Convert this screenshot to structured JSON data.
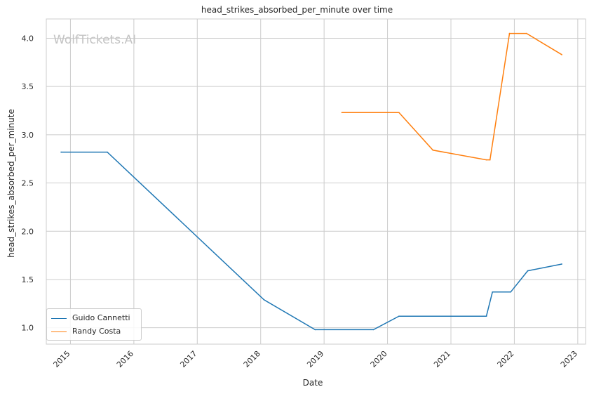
{
  "chart_data": {
    "type": "line",
    "title": "head_strikes_absorbed_per_minute over time",
    "xlabel": "Date",
    "ylabel": "head_strikes_absorbed_per_minute",
    "watermark": "WolfTickets.AI",
    "x_ticks": [
      "2015",
      "2016",
      "2017",
      "2018",
      "2019",
      "2020",
      "2021",
      "2022",
      "2023"
    ],
    "y_ticks": [
      "1.0",
      "1.5",
      "2.0",
      "2.5",
      "3.0",
      "3.5",
      "4.0"
    ],
    "xlim": [
      "2014-08-15",
      "2023-02-15"
    ],
    "ylim": [
      0.83,
      4.2
    ],
    "grid": true,
    "legend_position": "lower-left",
    "series": [
      {
        "name": "Guido Cannetti",
        "color": "#1f77b4",
        "points": [
          [
            "2014-11-08",
            2.82
          ],
          [
            "2015-08-01",
            2.82
          ],
          [
            "2018-01-20",
            1.29
          ],
          [
            "2018-11-10",
            0.98
          ],
          [
            "2019-10-12",
            0.98
          ],
          [
            "2020-03-07",
            1.12
          ],
          [
            "2021-07-24",
            1.12
          ],
          [
            "2021-08-28",
            1.37
          ],
          [
            "2021-12-11",
            1.37
          ],
          [
            "2022-03-19",
            1.59
          ],
          [
            "2022-10-01",
            1.66
          ]
        ]
      },
      {
        "name": "Randy Costa",
        "color": "#ff7f0e",
        "points": [
          [
            "2019-04-13",
            3.23
          ],
          [
            "2020-03-07",
            3.23
          ],
          [
            "2020-09-19",
            2.84
          ],
          [
            "2021-07-24",
            2.74
          ],
          [
            "2021-08-14",
            2.74
          ],
          [
            "2021-12-04",
            4.05
          ],
          [
            "2022-03-12",
            4.05
          ],
          [
            "2022-10-01",
            3.83
          ]
        ]
      }
    ]
  }
}
